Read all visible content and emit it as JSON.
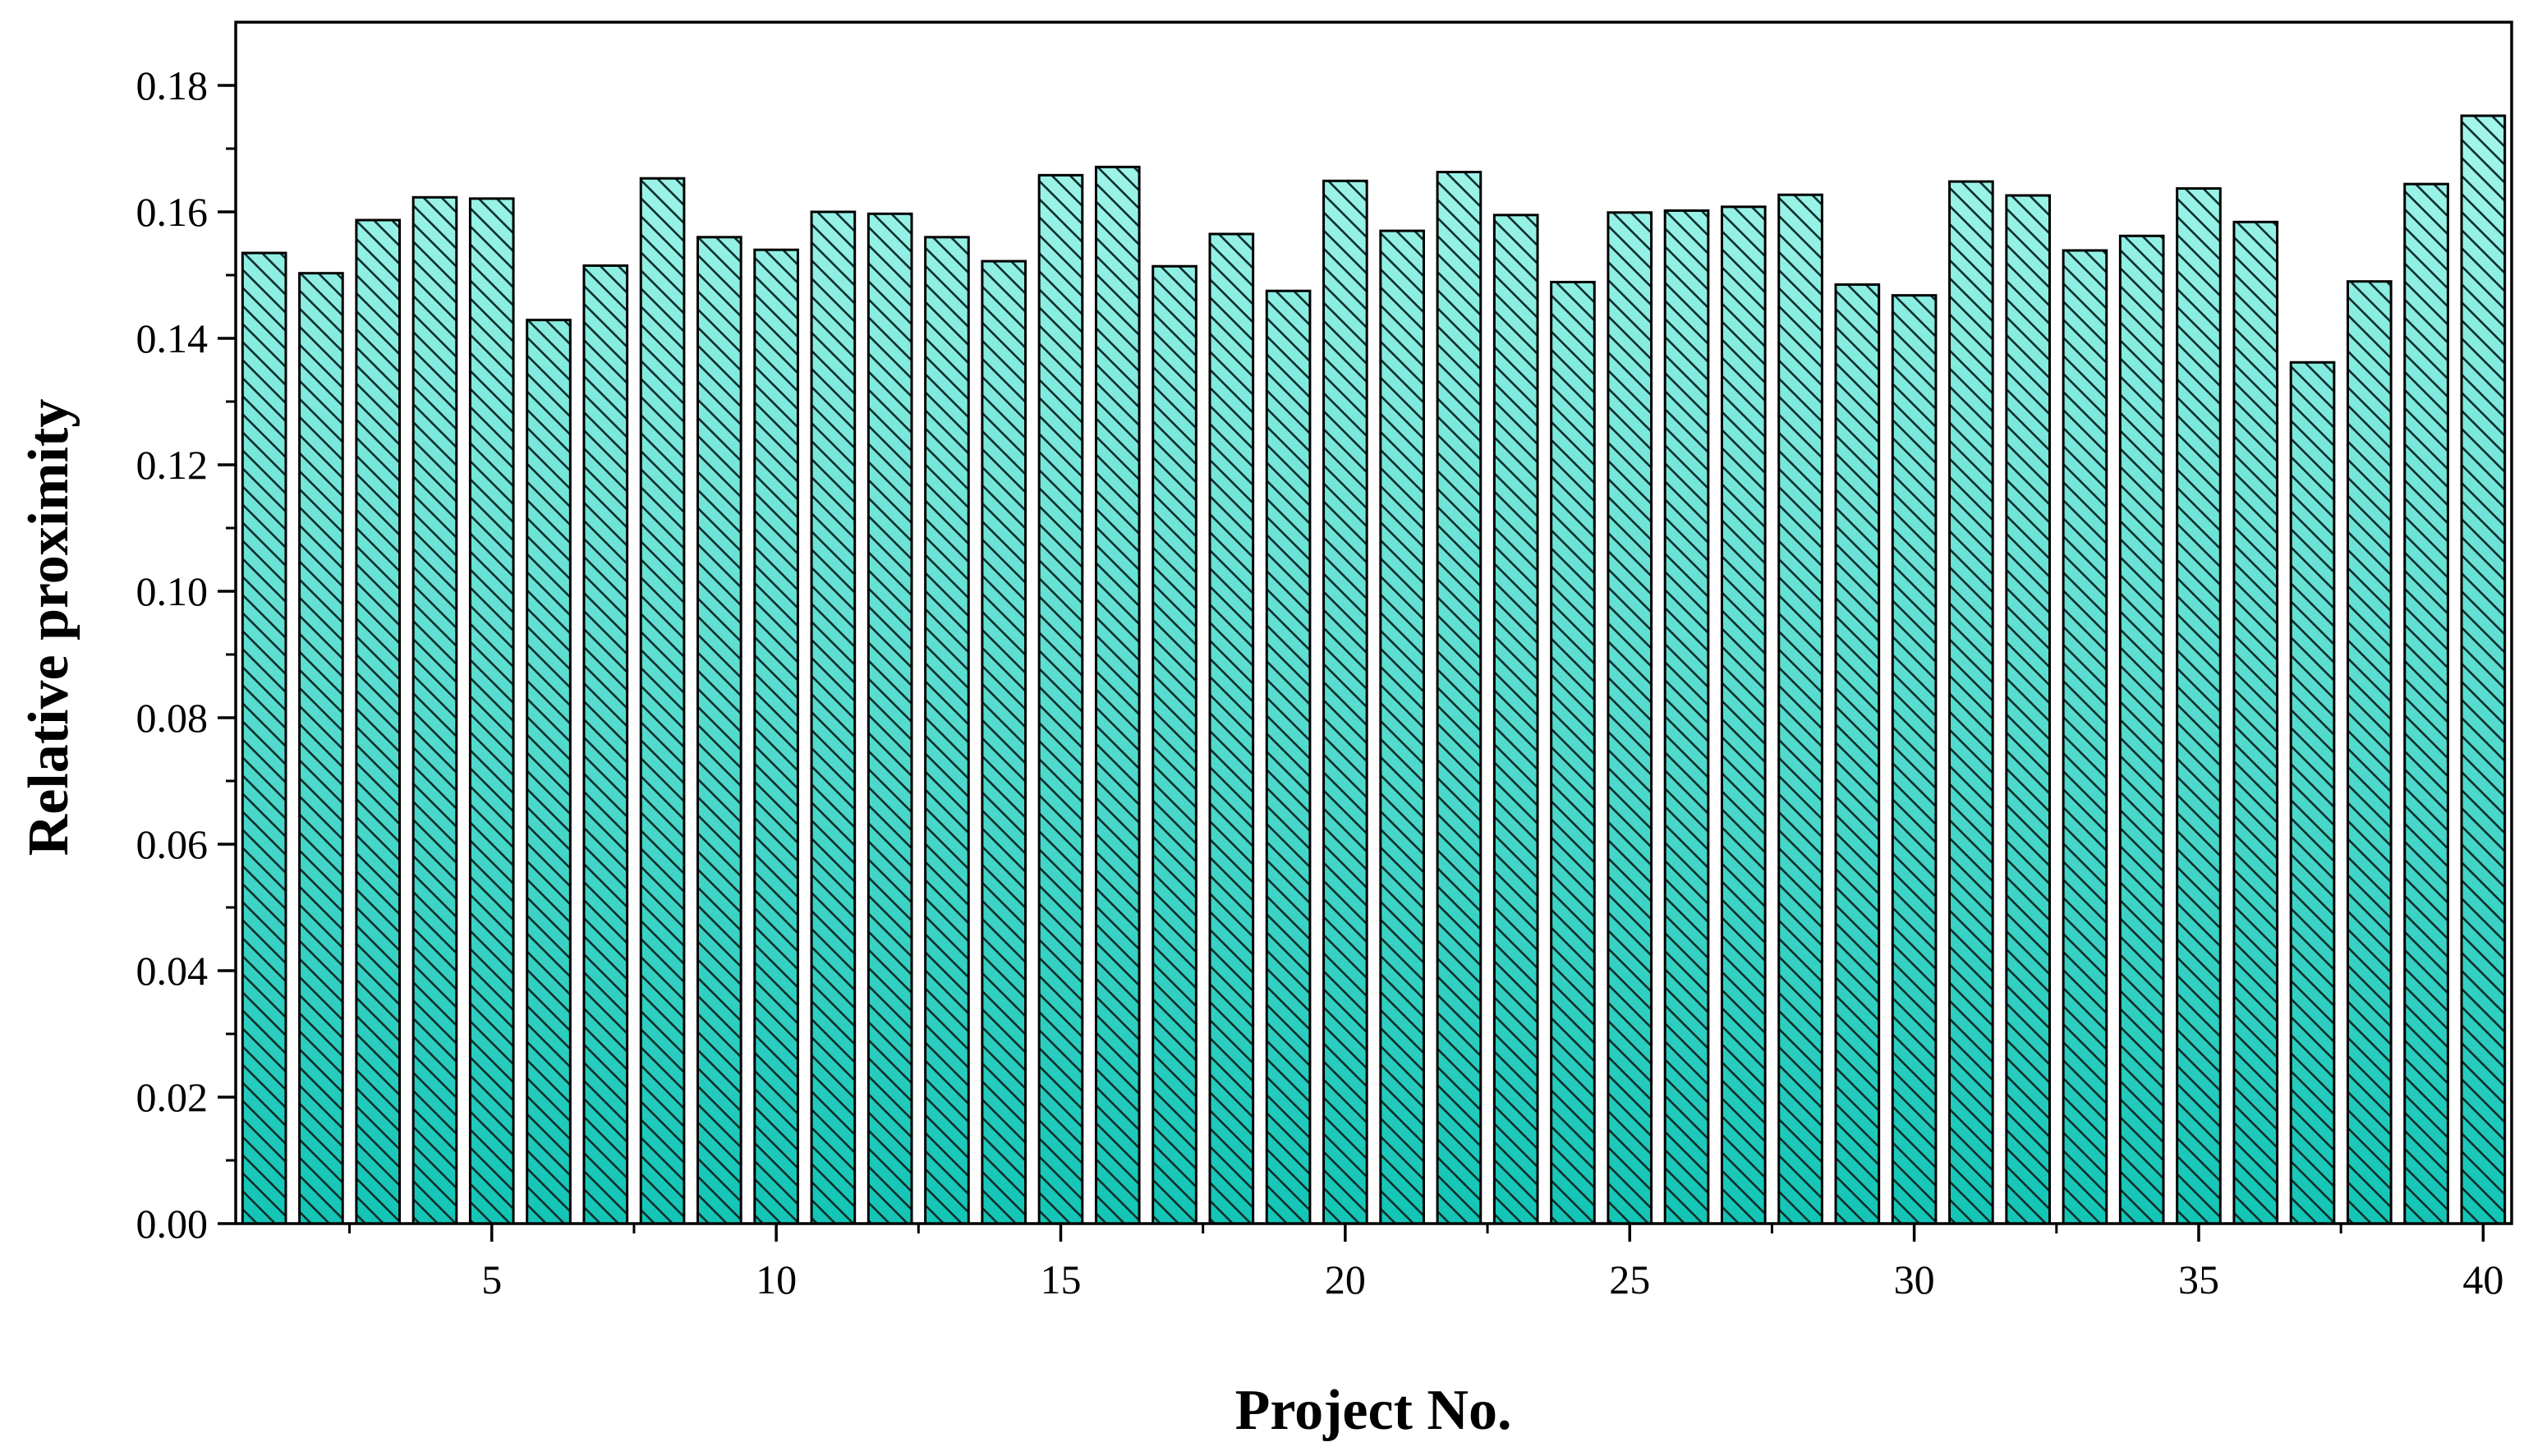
{
  "chart_data": {
    "type": "bar",
    "title": "",
    "xlabel": "Project No.",
    "ylabel": "Relative proximity",
    "x": [
      1,
      2,
      3,
      4,
      5,
      6,
      7,
      8,
      9,
      10,
      11,
      12,
      13,
      14,
      15,
      16,
      17,
      18,
      19,
      20,
      21,
      22,
      23,
      24,
      25,
      26,
      27,
      28,
      29,
      30,
      31,
      32,
      33,
      34,
      35,
      36,
      37,
      38,
      39,
      40
    ],
    "values": [
      0.1535,
      0.1503,
      0.1587,
      0.1623,
      0.1621,
      0.1429,
      0.1515,
      0.1653,
      0.156,
      0.154,
      0.16,
      0.1597,
      0.156,
      0.1522,
      0.1658,
      0.1671,
      0.1514,
      0.1565,
      0.1475,
      0.1649,
      0.157,
      0.1663,
      0.1595,
      0.1489,
      0.1599,
      0.1602,
      0.1608,
      0.1627,
      0.1485,
      0.1468,
      0.1648,
      0.1626,
      0.1539,
      0.1562,
      0.1637,
      0.1584,
      0.1362,
      0.149,
      0.1644,
      0.1752
    ],
    "x_ticks": [
      "5",
      "10",
      "15",
      "20",
      "25",
      "30",
      "35",
      "40"
    ],
    "x_tick_values": [
      5,
      10,
      15,
      20,
      25,
      30,
      35,
      40
    ],
    "y_ticks": [
      "0.00",
      "0.02",
      "0.04",
      "0.06",
      "0.08",
      "0.10",
      "0.12",
      "0.14",
      "0.16",
      "0.18"
    ],
    "y_tick_values": [
      0,
      0.02,
      0.04,
      0.06,
      0.08,
      0.1,
      0.12,
      0.14,
      0.16,
      0.18
    ],
    "xlim": [
      0.5,
      40.5
    ],
    "ylim": [
      0,
      0.19
    ],
    "grid": false,
    "legend": "none",
    "bar_fill": "hatched gradient",
    "colors": {
      "bar_top": "#a8f7ec",
      "bar_bottom": "#13c5b6",
      "hatch": "#0c2f2c",
      "outline": "#000000",
      "axis": "#000000"
    }
  }
}
